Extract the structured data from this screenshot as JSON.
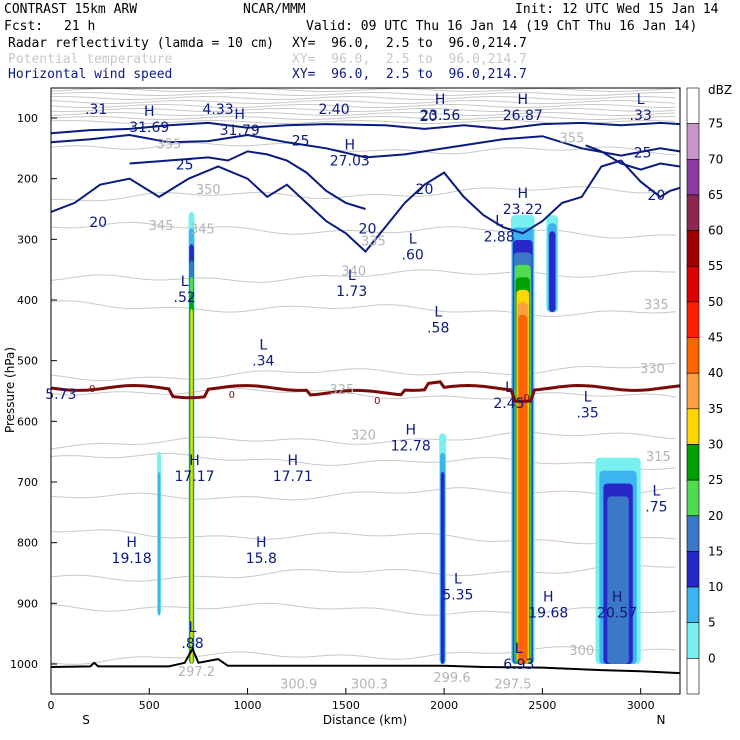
{
  "header": {
    "model": "CONTRAST 15km ARW",
    "center": "NCAR/MMM",
    "init": "Init: 12 UTC Wed 15 Jan 14",
    "fcst_label": "Fcst:",
    "fcst_value": "21 h",
    "valid": "Valid: 09 UTC Thu 16 Jan 14 (19 ChT Thu 16 Jan 14)",
    "fields": [
      {
        "name": "Radar reflectivity (lamda = 10 cm)",
        "xy": "XY=  96.0,  2.5 to  96.0,214.7",
        "color": "#000000"
      },
      {
        "name": "Potential temperature",
        "xy": "XY=  96.0,  2.5 to  96.0,214.7",
        "color": "#c8c8c8"
      },
      {
        "name": "Horizontal wind speed",
        "xy": "XY=  96.0,  2.5 to  96.0,214.7",
        "color": "#0a1a80"
      }
    ]
  },
  "chart_data": {
    "type": "cross-section",
    "xlabel": "Distance (km)",
    "ylabel": "Pressure (hPa)",
    "x_range": [
      0,
      3200
    ],
    "y_range": [
      1060,
      50
    ],
    "x_ticks": [
      0,
      500,
      1000,
      1500,
      2000,
      2500,
      3000
    ],
    "y_ticks": [
      100,
      200,
      300,
      400,
      500,
      600,
      700,
      800,
      900,
      1000
    ],
    "left_end": "S",
    "right_end": "N",
    "colorbar": {
      "unit": "dBZ",
      "levels": [
        75,
        70,
        65,
        60,
        55,
        50,
        45,
        40,
        35,
        30,
        25,
        20,
        15,
        10,
        5,
        0
      ],
      "colors": [
        "#ffffff",
        "#c896c8",
        "#8c3ca0",
        "#8c2850",
        "#a00000",
        "#dc0000",
        "#ff1e00",
        "#ff6400",
        "#ffa040",
        "#ffd700",
        "#00a000",
        "#50dc50",
        "#3c78c8",
        "#2828c8",
        "#3cb4f0",
        "#78f0f0",
        "#ffffff"
      ]
    },
    "reflectivity_columns": [
      {
        "x": [
          700,
          730
        ],
        "p": [
          255,
          1000
        ],
        "max_dbz": 35
      },
      {
        "x": [
          2340,
          2460
        ],
        "p": [
          260,
          1000
        ],
        "max_dbz": 45
      },
      {
        "x": [
          1975,
          2010
        ],
        "p": [
          620,
          1000
        ],
        "max_dbz": 15
      },
      {
        "x": [
          2770,
          3000
        ],
        "p": [
          660,
          1000
        ],
        "max_dbz": 20
      },
      {
        "x": [
          540,
          560
        ],
        "p": [
          650,
          920
        ],
        "max_dbz": 10
      },
      {
        "x": [
          2520,
          2580
        ],
        "p": [
          260,
          420
        ],
        "max_dbz": 15
      }
    ],
    "wind_speed_labels": [
      {
        "kind": "",
        "value": ".31",
        "x": 230,
        "p": 90
      },
      {
        "kind": "",
        "value": "4.33",
        "x": 850,
        "p": 90
      },
      {
        "kind": "",
        "value": "2.40",
        "x": 1440,
        "p": 90
      },
      {
        "kind": "H",
        "value": "31.69",
        "x": 500,
        "p": 120
      },
      {
        "kind": "H",
        "value": "31.79",
        "x": 960,
        "p": 125
      },
      {
        "kind": "H",
        "value": "27.03",
        "x": 1520,
        "p": 175
      },
      {
        "kind": "H",
        "value": "23.56",
        "x": 1980,
        "p": 100
      },
      {
        "kind": "H",
        "value": "26.87",
        "x": 2400,
        "p": 100
      },
      {
        "kind": "L",
        "value": ".33",
        "x": 3000,
        "p": 100
      },
      {
        "kind": "H",
        "value": "23.22",
        "x": 2400,
        "p": 255
      },
      {
        "kind": "L",
        "value": "2.88",
        "x": 2280,
        "p": 300
      },
      {
        "kind": "L",
        "value": ".60",
        "x": 1840,
        "p": 330
      },
      {
        "kind": "L",
        "value": "1.73",
        "x": 1530,
        "p": 390
      },
      {
        "kind": "L",
        "value": ".52",
        "x": 680,
        "p": 400
      },
      {
        "kind": "L",
        "value": ".58",
        "x": 1970,
        "p": 450
      },
      {
        "kind": "L",
        "value": ".34",
        "x": 1080,
        "p": 505
      },
      {
        "kind": "L",
        "value": "2.45",
        "x": 2330,
        "p": 575
      },
      {
        "kind": "",
        "value": "5.73",
        "x": 50,
        "p": 560
      },
      {
        "kind": "L",
        "value": ".35",
        "x": 2730,
        "p": 590
      },
      {
        "kind": "H",
        "value": "12.78",
        "x": 1830,
        "p": 645
      },
      {
        "kind": "H",
        "value": "17.17",
        "x": 730,
        "p": 695
      },
      {
        "kind": "H",
        "value": "17.71",
        "x": 1230,
        "p": 695
      },
      {
        "kind": "L",
        "value": ".75",
        "x": 3080,
        "p": 745
      },
      {
        "kind": "H",
        "value": "19.18",
        "x": 410,
        "p": 830
      },
      {
        "kind": "H",
        "value": "15.8",
        "x": 1070,
        "p": 830
      },
      {
        "kind": "L",
        "value": "5.35",
        "x": 2070,
        "p": 890
      },
      {
        "kind": "H",
        "value": "19.68",
        "x": 2530,
        "p": 920
      },
      {
        "kind": "H",
        "value": "20.57",
        "x": 2880,
        "p": 920
      },
      {
        "kind": "L",
        "value": ".88",
        "x": 720,
        "p": 970
      },
      {
        "kind": "L",
        "value": "6.93",
        "x": 2380,
        "p": 1005
      }
    ],
    "wind_contour_labels": [
      {
        "value": "20",
        "x": 1920,
        "p": 105
      },
      {
        "value": "25",
        "x": 1270,
        "p": 145
      },
      {
        "value": "25",
        "x": 680,
        "p": 185
      },
      {
        "value": "25",
        "x": 3010,
        "p": 165
      },
      {
        "value": "20",
        "x": 1900,
        "p": 225
      },
      {
        "value": "20",
        "x": 240,
        "p": 280
      },
      {
        "value": "20",
        "x": 1610,
        "p": 290
      },
      {
        "value": "20",
        "x": 3080,
        "p": 235
      }
    ],
    "theta_labels": [
      {
        "value": "345",
        "x": 770,
        "p": 290
      },
      {
        "value": "345",
        "x": 560,
        "p": 285
      },
      {
        "value": "340",
        "x": 1540,
        "p": 360
      },
      {
        "value": "335",
        "x": 1640,
        "p": 310
      },
      {
        "value": "335",
        "x": 3080,
        "p": 415
      },
      {
        "value": "330",
        "x": 3060,
        "p": 520
      },
      {
        "value": "325",
        "x": 1480,
        "p": 555
      },
      {
        "value": "320",
        "x": 1590,
        "p": 630
      },
      {
        "value": "315",
        "x": 3090,
        "p": 665
      },
      {
        "value": "350",
        "x": 800,
        "p": 225
      },
      {
        "value": "355",
        "x": 600,
        "p": 150
      },
      {
        "value": "355",
        "x": 2650,
        "p": 140
      },
      {
        "value": "300",
        "x": 2700,
        "p": 985
      },
      {
        "value": "300.9",
        "x": 1260,
        "p": 1040
      },
      {
        "value": "300.3",
        "x": 1620,
        "p": 1040
      },
      {
        "value": "299.6",
        "x": 2040,
        "p": 1030
      },
      {
        "value": "297.5",
        "x": 2350,
        "p": 1040
      },
      {
        "value": "297.2",
        "x": 740,
        "p": 1020
      }
    ],
    "freezing_level_labels": [
      {
        "value": "0",
        "x": 210,
        "p": 545
      },
      {
        "value": "0",
        "x": 920,
        "p": 555
      },
      {
        "value": "0",
        "x": 1660,
        "p": 565
      },
      {
        "value": "0",
        "x": 2420,
        "p": 560
      }
    ]
  }
}
